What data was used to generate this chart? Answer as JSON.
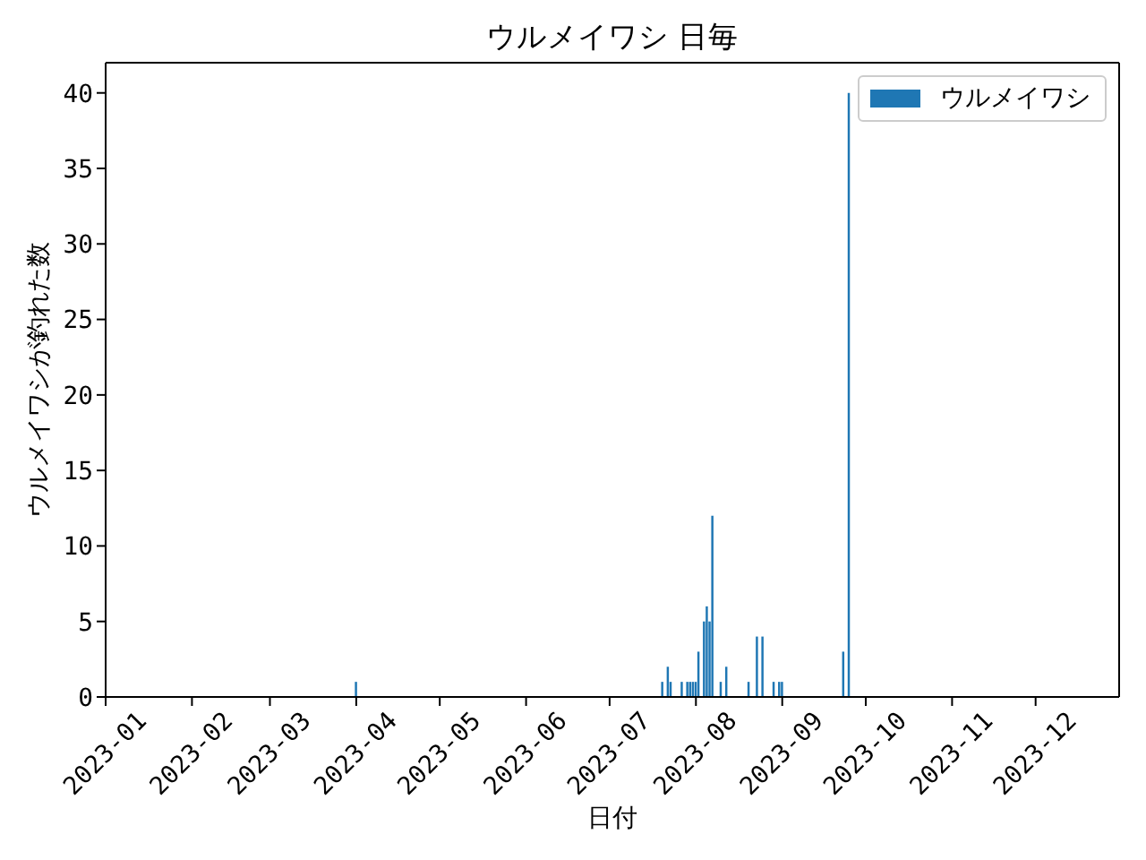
{
  "chart_data": {
    "type": "bar",
    "title": "ウルメイワシ 日毎",
    "xlabel": "日付",
    "ylabel": "ウルメイワシが釣れた数",
    "x": [
      "2023-04-01",
      "2023-07-20",
      "2023-07-22",
      "2023-07-23",
      "2023-07-27",
      "2023-07-29",
      "2023-07-30",
      "2023-07-31",
      "2023-08-01",
      "2023-08-02",
      "2023-08-04",
      "2023-08-05",
      "2023-08-06",
      "2023-08-07",
      "2023-08-10",
      "2023-08-12",
      "2023-08-20",
      "2023-08-23",
      "2023-08-25",
      "2023-08-29",
      "2023-08-31",
      "2023-09-01",
      "2023-09-23",
      "2023-09-25"
    ],
    "series": [
      {
        "name": "ウルメイワシ",
        "color": "#1f77b4",
        "values": [
          1,
          1,
          2,
          1,
          1,
          1,
          1,
          1,
          1,
          3,
          5,
          6,
          5,
          12,
          1,
          2,
          1,
          4,
          4,
          1,
          1,
          1,
          3,
          40
        ]
      }
    ],
    "xlim": [
      "2023-01-01",
      "2023-12-31"
    ],
    "xticks": [
      "2023-01",
      "2023-02",
      "2023-03",
      "2023-04",
      "2023-05",
      "2023-06",
      "2023-07",
      "2023-08",
      "2023-09",
      "2023-10",
      "2023-11",
      "2023-12"
    ],
    "ylim": [
      0,
      42
    ],
    "yticks": [
      0,
      5,
      10,
      15,
      20,
      25,
      30,
      35,
      40
    ],
    "legend": "top right"
  }
}
